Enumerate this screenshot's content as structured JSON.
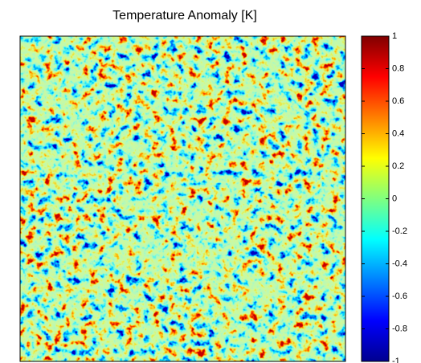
{
  "chart_data": {
    "type": "heatmap",
    "title": "Temperature Anomaly [K]",
    "colormap": "jet",
    "colorbar": {
      "ylim": [
        -1,
        1
      ],
      "yticks": [
        -1,
        -0.8,
        -0.6,
        -0.4,
        -0.2,
        0,
        0.2,
        0.4,
        0.6,
        0.8,
        1
      ]
    }
  }
}
